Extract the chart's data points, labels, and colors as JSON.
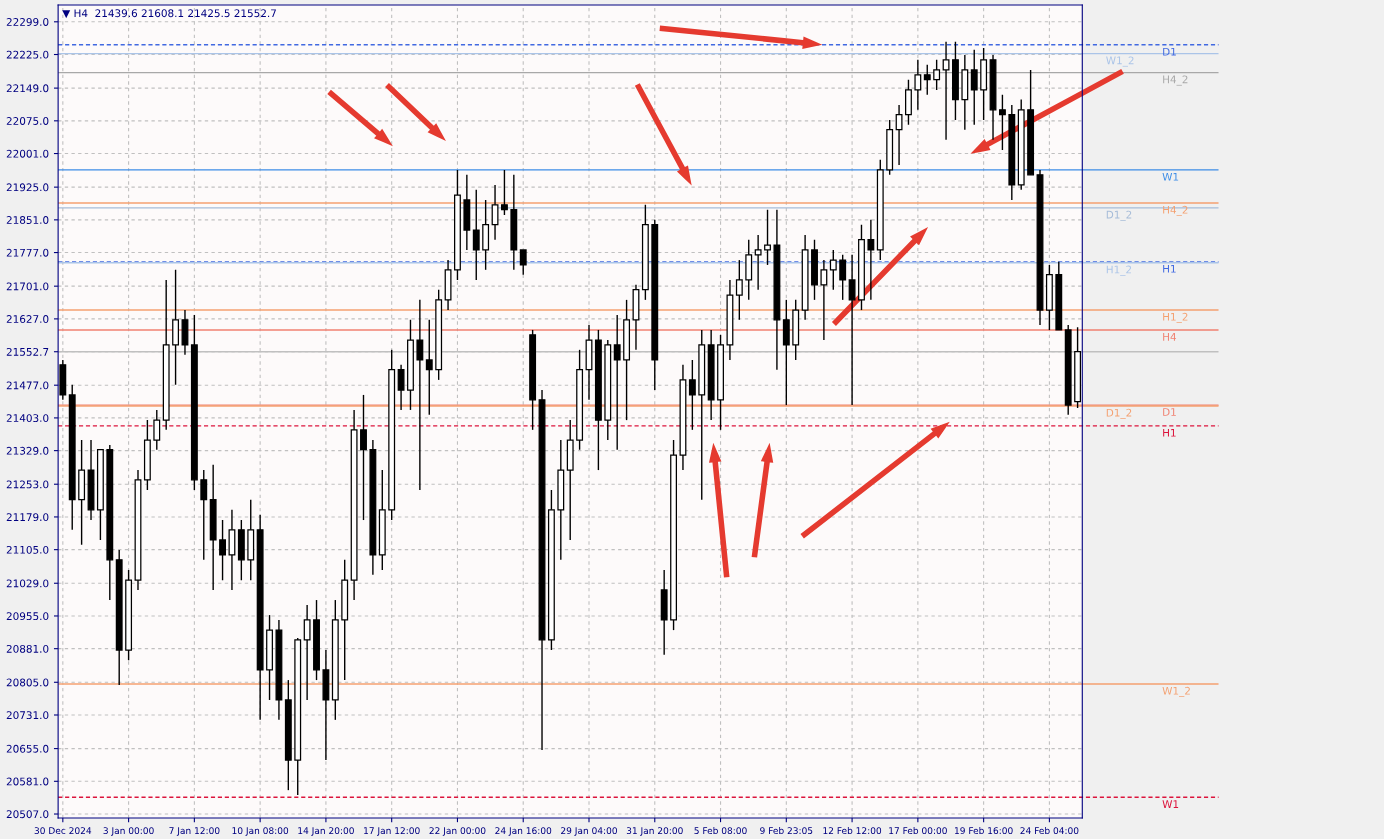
{
  "chart_data": {
    "type": "candlestick",
    "title": "▼ H4  21439.6 21608.1 21425.5 21552.7",
    "categories": [
      "30 Dec 2024",
      null,
      null,
      null,
      null,
      null,
      null,
      "3 Jan 00:00",
      null,
      null,
      null,
      null,
      null,
      null,
      "7 Jan 12:00",
      null,
      null,
      null,
      null,
      null,
      null,
      "10 Jan 08:00",
      null,
      null,
      null,
      null,
      null,
      null,
      "14 Jan 20:00",
      null,
      null,
      null,
      null,
      null,
      null,
      "17 Jan 12:00",
      null,
      null,
      null,
      null,
      null,
      null,
      "22 Jan 00:00",
      null,
      null,
      null,
      null,
      null,
      null,
      "24 Jan 16:00",
      null,
      null,
      null,
      null,
      null,
      null,
      "29 Jan 04:00",
      null,
      null,
      null,
      null,
      null,
      null,
      "31 Jan 20:00",
      null,
      null,
      null,
      null,
      null,
      null,
      "5 Feb 08:00",
      null,
      null,
      null,
      null,
      null,
      null,
      "9 Feb 23:05",
      null,
      null,
      null,
      null,
      null,
      null,
      "12 Feb 12:00",
      null,
      null,
      null,
      null,
      null,
      null,
      "17 Feb 00:00",
      null,
      null,
      null,
      null,
      null,
      null,
      "19 Feb 16:00",
      null,
      null,
      null,
      null,
      null,
      null,
      "24 Feb 04:00",
      null,
      null,
      null
    ],
    "ohlc": [
      [
        21523,
        21534,
        21444,
        21455
      ],
      [
        21455,
        21478,
        21150,
        21218
      ],
      [
        21218,
        21353,
        21116,
        21285
      ],
      [
        21285,
        21353,
        21172,
        21195
      ],
      [
        21195,
        21331,
        21127,
        21331
      ],
      [
        21331,
        21342,
        20991,
        21082
      ],
      [
        21082,
        21104,
        20799,
        20878
      ],
      [
        20878,
        21059,
        20855,
        21036
      ],
      [
        21036,
        21285,
        21014,
        21263
      ],
      [
        21263,
        21398,
        21240,
        21353
      ],
      [
        21353,
        21421,
        21331,
        21398
      ],
      [
        21398,
        21715,
        21376,
        21568
      ],
      [
        21568,
        21738,
        21478,
        21625
      ],
      [
        21625,
        21647,
        21546,
        21568
      ],
      [
        21568,
        21636,
        21240,
        21263
      ],
      [
        21263,
        21285,
        21082,
        21218
      ],
      [
        21218,
        21297,
        21014,
        21127
      ],
      [
        21127,
        21172,
        21036,
        21093
      ],
      [
        21093,
        21195,
        21014,
        21150
      ],
      [
        21150,
        21172,
        21036,
        21082
      ],
      [
        21082,
        21218,
        21036,
        21150
      ],
      [
        21150,
        21184,
        20720,
        20833
      ],
      [
        20833,
        20957,
        20765,
        20923
      ],
      [
        20923,
        20946,
        20720,
        20765
      ],
      [
        20765,
        20810,
        20561,
        20629
      ],
      [
        20629,
        20905,
        20550,
        20901
      ],
      [
        20901,
        20980,
        20765,
        20946
      ],
      [
        20946,
        20991,
        20810,
        20833
      ],
      [
        20833,
        20878,
        20629,
        20765
      ],
      [
        20765,
        20991,
        20720,
        20946
      ],
      [
        20946,
        21082,
        20810,
        21036
      ],
      [
        21036,
        21421,
        20991,
        21376
      ],
      [
        21376,
        21455,
        21172,
        21331
      ],
      [
        21331,
        21353,
        21048,
        21093
      ],
      [
        21093,
        21285,
        21059,
        21195
      ],
      [
        21195,
        21557,
        21172,
        21512
      ],
      [
        21512,
        21523,
        21421,
        21466
      ],
      [
        21466,
        21625,
        21421,
        21579
      ],
      [
        21579,
        21670,
        21240,
        21534
      ],
      [
        21534,
        21625,
        21410,
        21512
      ],
      [
        21512,
        21693,
        21489,
        21670
      ],
      [
        21670,
        21760,
        21647,
        21738
      ],
      [
        21738,
        21964,
        21715,
        21907
      ],
      [
        21896,
        21953,
        21783,
        21828
      ],
      [
        21828,
        21919,
        21715,
        21783
      ],
      [
        21783,
        21896,
        21738,
        21840
      ],
      [
        21840,
        21930,
        21806,
        21885
      ],
      [
        21885,
        21964,
        21862,
        21874
      ],
      [
        21874,
        21953,
        21738,
        21783
      ],
      [
        21783,
        21783,
        21727,
        21749
      ],
      [
        21591,
        21602,
        21376,
        21444
      ],
      [
        21444,
        21466,
        20652,
        20901
      ],
      [
        20901,
        21240,
        20878,
        21195
      ],
      [
        21195,
        21353,
        21082,
        21285
      ],
      [
        21285,
        21398,
        21127,
        21353
      ],
      [
        21353,
        21557,
        21331,
        21512
      ],
      [
        21512,
        21613,
        21444,
        21579
      ],
      [
        21579,
        21602,
        21285,
        21398
      ],
      [
        21398,
        21579,
        21353,
        21568
      ],
      [
        21568,
        21636,
        21331,
        21534
      ],
      [
        21534,
        21670,
        21398,
        21625
      ],
      [
        21625,
        21704,
        21557,
        21693
      ],
      [
        21693,
        21885,
        21670,
        21840
      ],
      [
        21840,
        21851,
        21466,
        21534
      ],
      [
        21014,
        21059,
        20867,
        20946
      ],
      [
        20946,
        21353,
        20923,
        21319
      ],
      [
        21319,
        21523,
        21285,
        21489
      ],
      [
        21489,
        21534,
        21376,
        21455
      ],
      [
        21455,
        21602,
        21218,
        21568
      ],
      [
        21568,
        21602,
        21398,
        21444
      ],
      [
        21444,
        21591,
        21376,
        21568
      ],
      [
        21568,
        21715,
        21534,
        21681
      ],
      [
        21681,
        21760,
        21625,
        21715
      ],
      [
        21715,
        21806,
        21670,
        21772
      ],
      [
        21772,
        21817,
        21693,
        21783
      ],
      [
        21783,
        21874,
        21749,
        21794
      ],
      [
        21794,
        21874,
        21512,
        21625
      ],
      [
        21625,
        21670,
        21432,
        21568
      ],
      [
        21568,
        21670,
        21534,
        21647
      ],
      [
        21647,
        21817,
        21625,
        21783
      ],
      [
        21783,
        21806,
        21670,
        21704
      ],
      [
        21704,
        21760,
        21579,
        21738
      ],
      [
        21738,
        21783,
        21693,
        21760
      ],
      [
        21760,
        21772,
        21670,
        21715
      ],
      [
        21715,
        21772,
        21432,
        21670
      ],
      [
        21670,
        21840,
        21647,
        21806
      ],
      [
        21806,
        21851,
        21670,
        21783
      ],
      [
        21783,
        21987,
        21760,
        21964
      ],
      [
        21964,
        22077,
        21953,
        22055
      ],
      [
        22055,
        22111,
        21975,
        22089
      ],
      [
        22089,
        22168,
        22066,
        22145
      ],
      [
        22145,
        22213,
        22100,
        22179
      ],
      [
        22179,
        22202,
        22134,
        22168
      ],
      [
        22168,
        22213,
        22145,
        22190
      ],
      [
        22190,
        22254,
        22032,
        22213
      ],
      [
        22213,
        22254,
        22077,
        22123
      ],
      [
        22123,
        22224,
        22055,
        22190
      ],
      [
        22190,
        22236,
        22066,
        22145
      ],
      [
        22145,
        22240,
        22077,
        22213
      ],
      [
        22213,
        22224,
        22032,
        22100
      ],
      [
        22100,
        22134,
        22009,
        22089
      ],
      [
        22089,
        22111,
        21896,
        21930
      ],
      [
        21930,
        22123,
        21919,
        22100
      ],
      [
        22100,
        22190,
        21953,
        21953
      ],
      [
        21953,
        21964,
        21613,
        21647
      ],
      [
        21647,
        21749,
        21602,
        21727
      ],
      [
        21727,
        21756,
        21602,
        21602
      ],
      [
        21602,
        21613,
        21410,
        21432
      ],
      [
        21439.6,
        21608.1,
        21425.5,
        21552.7
      ]
    ],
    "color": "#000000",
    "ylim": [
      20498,
      22337
    ],
    "yticks": [
      {
        "value": 22299,
        "label": "22299.0"
      },
      {
        "value": 22225,
        "label": "22225.0"
      },
      {
        "value": 22149,
        "label": "22149.0"
      },
      {
        "value": 22075,
        "label": "22075.0"
      },
      {
        "value": 22001,
        "label": "22001.0"
      },
      {
        "value": 21925,
        "label": "21925.0"
      },
      {
        "value": 21851,
        "label": "21851.0"
      },
      {
        "value": 21777,
        "label": "21777.0"
      },
      {
        "value": 21701,
        "label": "21701.0"
      },
      {
        "value": 21627,
        "label": "21627.0"
      },
      {
        "value": 21552.7,
        "label": "21552.7"
      },
      {
        "value": 21477,
        "label": "21477.0"
      },
      {
        "value": 21403,
        "label": "21403.0"
      },
      {
        "value": 21329,
        "label": "21329.0"
      },
      {
        "value": 21253,
        "label": "21253.0"
      },
      {
        "value": 21179,
        "label": "21179.0"
      },
      {
        "value": 21105,
        "label": "21105.0"
      },
      {
        "value": 21029,
        "label": "21029.0"
      },
      {
        "value": 20955,
        "label": "20955.0"
      },
      {
        "value": 20881,
        "label": "20881.0"
      },
      {
        "value": 20805,
        "label": "20805.0"
      },
      {
        "value": 20731,
        "label": "20731.0"
      },
      {
        "value": 20655,
        "label": "20655.0"
      },
      {
        "value": 20581,
        "label": "20581.0"
      },
      {
        "value": 20507,
        "label": "20507.0"
      }
    ],
    "grid": true,
    "ref_lines": [
      {
        "axis": "y",
        "value": 22247,
        "label": "D1",
        "color": "#4169e1",
        "line_style": "dashed"
      },
      {
        "axis": "y",
        "value": 22227,
        "label": "W1_2",
        "color": "#aac4e8",
        "line_style": "solid"
      },
      {
        "axis": "y",
        "value": 22184,
        "label": "H4_2",
        "color": "#a8a8a8",
        "line_style": "solid"
      },
      {
        "axis": "y",
        "value": 21964,
        "label": "W1",
        "color": "#3c8ce6",
        "line_style": "solid"
      },
      {
        "axis": "y",
        "value": 21889,
        "label": "H4_2",
        "color": "#f4a070",
        "line_style": "solid"
      },
      {
        "axis": "y",
        "value": 21878,
        "label": "D1_2",
        "color": "#a6bcd8",
        "line_style": "solid"
      },
      {
        "axis": "y",
        "value": 21756,
        "label": "H1",
        "color": "#4169e1",
        "line_style": "dashed"
      },
      {
        "axis": "y",
        "value": 21754,
        "label": "H1_2",
        "color": "#aac4e8",
        "line_style": "solid"
      },
      {
        "axis": "y",
        "value": 21647,
        "label": "H1_2",
        "color": "#f4a070",
        "line_style": "solid"
      },
      {
        "axis": "y",
        "value": 21602,
        "label": "H4",
        "color": "#f08070",
        "line_style": "solid"
      },
      {
        "axis": "y",
        "value": 21552.7,
        "color": "#c0c0c0",
        "line_style": "solid"
      },
      {
        "axis": "y",
        "value": 21432,
        "label": "D1",
        "color": "#f08070",
        "line_style": "solid"
      },
      {
        "axis": "y",
        "value": 21430,
        "label": "D1_2",
        "color": "#f4a070",
        "line_style": "solid"
      },
      {
        "axis": "y",
        "value": 21385,
        "label": "H1",
        "color": "#dc143c",
        "line_style": "dashed"
      },
      {
        "axis": "y",
        "value": 20801,
        "label": "W1_2",
        "color": "#f4a070",
        "line_style": "solid"
      },
      {
        "axis": "y",
        "value": 20545,
        "label": "W1",
        "color": "#dc143c",
        "line_style": "dashed"
      }
    ]
  }
}
